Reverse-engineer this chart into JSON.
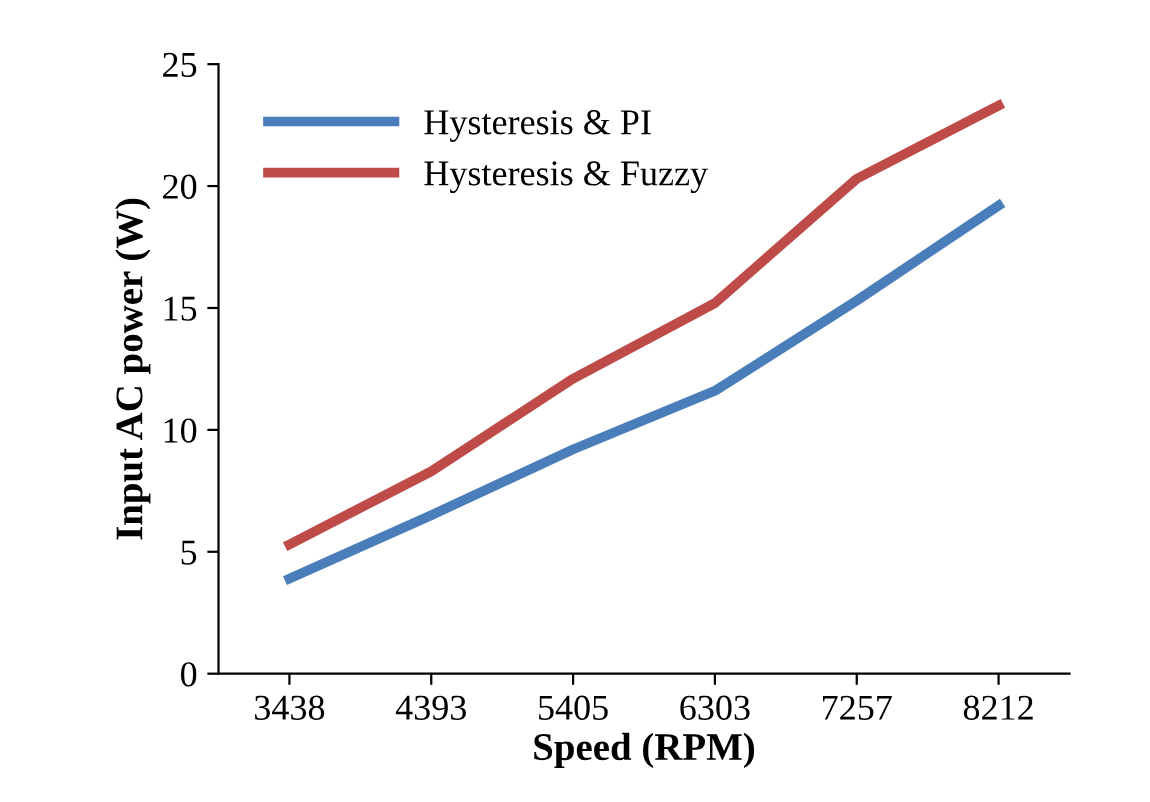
{
  "chart_data": {
    "type": "line",
    "xlabel": "Speed (RPM)",
    "ylabel": "Input AC power (W)",
    "categories": [
      "3438",
      "4393",
      "5405",
      "6303",
      "7257",
      "8212"
    ],
    "series": [
      {
        "name": "Hysteresis & PI",
        "color": "#4a7ebb",
        "values": [
          3.9,
          6.5,
          9.2,
          11.6,
          15.3,
          19.2
        ]
      },
      {
        "name": "Hysteresis & Fuzzy",
        "color": "#be4b48",
        "values": [
          5.3,
          8.3,
          12.1,
          15.2,
          20.3,
          23.3
        ]
      }
    ],
    "ylim": [
      0,
      25
    ],
    "yticks": [
      0,
      5,
      10,
      15,
      20,
      25
    ],
    "grid": false,
    "legend": "top left",
    "marker": "none",
    "line_style": "solid"
  }
}
